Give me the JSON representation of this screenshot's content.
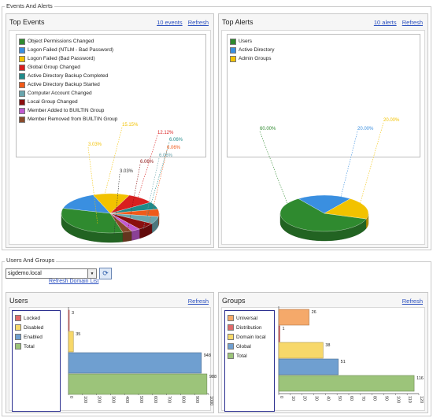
{
  "events_section": {
    "title": "Events And Alerts"
  },
  "top_events": {
    "title": "Top Events",
    "events_link": "10 events",
    "refresh_link": "Refresh",
    "legend": [
      {
        "label": "Object Permissions Changed",
        "color": "#2f8a2f"
      },
      {
        "label": "Logon Failed (NTLM - Bad Password)",
        "color": "#3a8fe0"
      },
      {
        "label": "Logon Failed (Bad Password)",
        "color": "#f2c200"
      },
      {
        "label": "Global Group Changed",
        "color": "#d91f1f"
      },
      {
        "label": "Active Directory Backup Completed",
        "color": "#1f8a8a"
      },
      {
        "label": "Active Directory Backup Started",
        "color": "#f05a1a"
      },
      {
        "label": "Computer Account Changed",
        "color": "#6aa5ad"
      },
      {
        "label": "Local Group Changed",
        "color": "#8a0f0f"
      },
      {
        "label": "Member Added to BUILTIN Group",
        "color": "#c05ad0"
      },
      {
        "label": "Member Removed from BUILTIN Group",
        "color": "#8a4a2a"
      }
    ],
    "percent_labels": [
      "15.15%",
      "12.12%",
      "3.03%",
      "6.06%",
      "6.06%",
      "6.06%",
      "6.06%",
      "3.03%"
    ]
  },
  "top_alerts": {
    "title": "Top Alerts",
    "alerts_link": "10 alerts",
    "refresh_link": "Refresh",
    "legend": [
      {
        "label": "Users",
        "color": "#2f8a2f"
      },
      {
        "label": "Active Directory",
        "color": "#3a8fe0"
      },
      {
        "label": "Admin Groups",
        "color": "#f2c200"
      }
    ],
    "percent_labels": [
      "60.00%",
      "20.00%",
      "20.00%"
    ]
  },
  "users_groups_section": {
    "title": "Users And Groups",
    "domain_value": "sigdemo.local",
    "refresh_domain_link": "Refresh Domain List"
  },
  "users_panel": {
    "title": "Users",
    "refresh_link": "Refresh",
    "legend": [
      {
        "label": "Locked",
        "color": "#e06a6a"
      },
      {
        "label": "Disabled",
        "color": "#f7d86a"
      },
      {
        "label": "Enabled",
        "color": "#6f9fd0"
      },
      {
        "label": "Total",
        "color": "#9cc47a"
      }
    ],
    "ticks": [
      "0",
      "100",
      "200",
      "300",
      "400",
      "500",
      "600",
      "700",
      "800",
      "900",
      "1000"
    ]
  },
  "groups_panel": {
    "title": "Groups",
    "refresh_link": "Refresh",
    "legend": [
      {
        "label": "Universal",
        "color": "#f5a96a"
      },
      {
        "label": "Distribution",
        "color": "#e06a6a"
      },
      {
        "label": "Domain local",
        "color": "#f7d86a"
      },
      {
        "label": "Global",
        "color": "#6f9fd0"
      },
      {
        "label": "Total",
        "color": "#9cc47a"
      }
    ],
    "ticks": [
      "0",
      "10",
      "20",
      "30",
      "40",
      "50",
      "60",
      "70",
      "80",
      "90",
      "100",
      "110",
      "120"
    ]
  },
  "chart_data": [
    {
      "type": "pie",
      "title": "Top Events",
      "labels": [
        "Object Permissions Changed",
        "Logon Failed (NTLM - Bad Password)",
        "Logon Failed (Bad Password)",
        "Global Group Changed",
        "Active Directory Backup Completed",
        "Active Directory Backup Started",
        "Computer Account Changed",
        "Local Group Changed",
        "Member Added to BUILTIN Group",
        "Member Removed from BUILTIN Group"
      ],
      "values": [
        33.33,
        15.15,
        12.12,
        9.09,
        6.06,
        6.06,
        6.06,
        6.06,
        3.03,
        3.03
      ]
    },
    {
      "type": "pie",
      "title": "Top Alerts",
      "labels": [
        "Users",
        "Active Directory",
        "Admin Groups"
      ],
      "values": [
        60.0,
        20.0,
        20.0
      ]
    },
    {
      "type": "bar",
      "orientation": "horizontal",
      "title": "Users",
      "categories": [
        "Locked",
        "Disabled",
        "Enabled",
        "Total"
      ],
      "values": [
        3,
        35,
        948,
        988
      ],
      "xlim": [
        0,
        1000
      ]
    },
    {
      "type": "bar",
      "orientation": "horizontal",
      "title": "Groups",
      "categories": [
        "Universal",
        "Distribution",
        "Domain local",
        "Global",
        "Total"
      ],
      "values": [
        26,
        1,
        38,
        51,
        116
      ],
      "xlim": [
        0,
        120
      ]
    }
  ]
}
